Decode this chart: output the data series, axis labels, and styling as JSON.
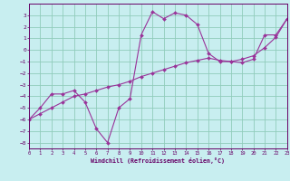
{
  "xlabel": "Windchill (Refroidissement éolien,°C)",
  "background_color": "#c8eef0",
  "grid_color": "#90ccbb",
  "line_color": "#993399",
  "curve1_x": [
    0,
    1,
    2,
    3,
    4,
    5,
    6,
    7,
    8,
    9,
    10,
    11,
    12,
    13,
    14,
    15,
    16,
    17,
    18,
    19,
    20,
    21,
    22,
    23
  ],
  "curve1_y": [
    -6.0,
    -5.0,
    -3.8,
    -3.8,
    -3.5,
    -4.5,
    -6.8,
    -8.0,
    -5.0,
    -4.2,
    1.3,
    3.3,
    2.7,
    3.2,
    3.0,
    2.2,
    -0.3,
    -1.0,
    -1.0,
    -1.1,
    -0.8,
    1.3,
    1.3,
    2.7
  ],
  "curve2_x": [
    0,
    1,
    2,
    3,
    4,
    5,
    6,
    7,
    8,
    9,
    10,
    11,
    12,
    13,
    14,
    15,
    16,
    17,
    18,
    19,
    20,
    21,
    22,
    23
  ],
  "curve2_y": [
    -6.0,
    -5.5,
    -5.0,
    -4.5,
    -4.0,
    -3.8,
    -3.5,
    -3.2,
    -3.0,
    -2.7,
    -2.3,
    -2.0,
    -1.7,
    -1.4,
    -1.1,
    -0.9,
    -0.7,
    -0.9,
    -1.0,
    -0.8,
    -0.5,
    0.2,
    1.1,
    2.7
  ],
  "xlim": [
    0,
    23
  ],
  "ylim": [
    -8.5,
    4.0
  ],
  "xticks": [
    0,
    1,
    2,
    3,
    4,
    5,
    6,
    7,
    8,
    9,
    10,
    11,
    12,
    13,
    14,
    15,
    16,
    17,
    18,
    19,
    20,
    21,
    22,
    23
  ],
  "yticks": [
    3,
    2,
    1,
    0,
    -1,
    -2,
    -3,
    -4,
    -5,
    -6,
    -7,
    -8
  ]
}
